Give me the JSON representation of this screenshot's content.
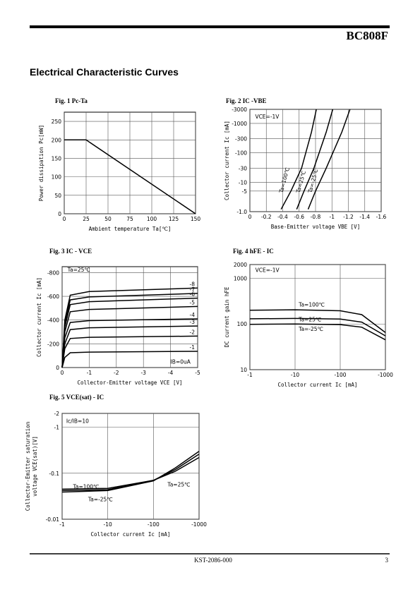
{
  "header": {
    "part": "BC808F"
  },
  "title": "Electrical Characteristic Curves",
  "footer": {
    "doc": "KST-2086-000",
    "page": "3"
  },
  "chart_data": [
    {
      "type": "line",
      "title": "Fig. 1 Pc-Ta",
      "xlabel": "Ambient temperature  Ta[℃]",
      "ylabel": "Power dissipation  Pc[mW]",
      "xlim": [
        0,
        150
      ],
      "xticks": [
        0,
        25,
        50,
        75,
        100,
        125,
        150
      ],
      "ylim": [
        0,
        275
      ],
      "yticks": [
        0,
        50,
        100,
        150,
        200,
        250
      ],
      "grid": true,
      "series": [
        {
          "name": "Pc",
          "color": "#000000",
          "x": [
            0,
            25,
            150
          ],
          "values": [
            200,
            200,
            0
          ]
        }
      ],
      "annotations": []
    },
    {
      "type": "line",
      "title": "Fig. 2 IC -VBE",
      "xlabel": "Base-Emitter voltage  VBE [V]",
      "ylabel": "Collector current  Ic [mA]",
      "xlim": [
        0,
        -1.6
      ],
      "xticks": [
        0,
        -0.2,
        -0.4,
        -0.6,
        -0.8,
        -1,
        -1.2,
        -1.4,
        -1.6
      ],
      "log_y": true,
      "ylim": [
        -1,
        -3000
      ],
      "yticks": [
        -3000,
        -1000,
        -300,
        -100,
        -30,
        -10,
        -5,
        {
          "value": -1,
          "label": "-1.0"
        }
      ],
      "grid": true,
      "series": [
        {
          "name": "Ta=100℃",
          "color": "#000000",
          "x": [
            -0.38,
            -0.5,
            -0.63,
            -0.75,
            -0.81
          ],
          "values": [
            -1.2,
            -5,
            -30,
            -500,
            -3000
          ]
        },
        {
          "name": "Ta=25℃",
          "color": "#000000",
          "x": [
            -0.57,
            -0.66,
            -0.78,
            -0.93,
            -1.01
          ],
          "values": [
            -1.2,
            -5,
            -30,
            -500,
            -3000
          ]
        },
        {
          "name": "Ta=-25℃",
          "color": "#000000",
          "x": [
            -0.71,
            -0.8,
            -0.93,
            -1.12,
            -1.22
          ],
          "values": [
            -1.2,
            -5,
            -30,
            -500,
            -3000
          ]
        }
      ],
      "annotations": [
        "VCE=-1V"
      ]
    },
    {
      "type": "line",
      "title": "Fig. 3 IC - VCE",
      "xlabel": "Collector-Emitter voltage  VCE [V]",
      "ylabel": "Collector current  Ic [mA]",
      "xlim": [
        0,
        -5
      ],
      "xticks": [
        0,
        -1,
        -2,
        -3,
        -4,
        -5
      ],
      "ylim": [
        0,
        -850
      ],
      "yticks": [
        0,
        -200,
        -400,
        -600,
        -800
      ],
      "grid": true,
      "series": [
        {
          "name": "-8",
          "color": "#000000",
          "x": [
            0,
            -0.1,
            -0.3,
            -1,
            -5
          ],
          "values": [
            0,
            -400,
            -610,
            -640,
            -670
          ]
        },
        {
          "name": "-7",
          "color": "#000000",
          "x": [
            0,
            -0.1,
            -0.3,
            -1,
            -5
          ],
          "values": [
            0,
            -370,
            -570,
            -595,
            -625
          ]
        },
        {
          "name": "-6",
          "color": "#000000",
          "x": [
            0,
            -0.1,
            -0.3,
            -1,
            -5
          ],
          "values": [
            0,
            -340,
            -530,
            -555,
            -585
          ]
        },
        {
          "name": "-5",
          "color": "#000000",
          "x": [
            0,
            -0.1,
            -0.3,
            -1,
            -5
          ],
          "values": [
            0,
            -300,
            -470,
            -490,
            -515
          ]
        },
        {
          "name": "-4",
          "color": "#000000",
          "x": [
            0,
            -0.1,
            -0.3,
            -1,
            -5
          ],
          "values": [
            0,
            -250,
            -380,
            -395,
            -410
          ]
        },
        {
          "name": "-3",
          "color": "#000000",
          "x": [
            0,
            -0.1,
            -0.3,
            -1,
            -5
          ],
          "values": [
            0,
            -200,
            -320,
            -335,
            -350
          ]
        },
        {
          "name": "-2",
          "color": "#000000",
          "x": [
            0,
            -0.1,
            -0.3,
            -1,
            -5
          ],
          "values": [
            0,
            -160,
            -245,
            -255,
            -265
          ]
        },
        {
          "name": "-1",
          "color": "#000000",
          "x": [
            0,
            -0.1,
            -0.3,
            -1,
            -5
          ],
          "values": [
            0,
            -85,
            -125,
            -130,
            -137
          ]
        }
      ],
      "annotations": [
        "Ta=25℃",
        "IB=0uA"
      ]
    },
    {
      "type": "line",
      "title": "Fig. 4 hFE - IC",
      "xlabel": "Collector current  Ic [mA]",
      "ylabel": "DC current gain  hFE",
      "log_x": true,
      "log_y": true,
      "xlim": [
        -1,
        -1000
      ],
      "xticks": [
        -1,
        -10,
        -100,
        -1000
      ],
      "ylim": [
        10,
        2000
      ],
      "yticks": [
        10,
        100,
        1000,
        2000
      ],
      "grid": true,
      "series": [
        {
          "name": "Ta=100℃",
          "color": "#000000",
          "x": [
            -1,
            -10,
            -100,
            -300,
            -1000
          ],
          "values": [
            200,
            205,
            195,
            160,
            65
          ]
        },
        {
          "name": "Ta=25℃",
          "color": "#000000",
          "x": [
            -1,
            -10,
            -100,
            -300,
            -1000
          ],
          "values": [
            130,
            132,
            128,
            110,
            55
          ]
        },
        {
          "name": "Ta=-25℃",
          "color": "#000000",
          "x": [
            -1,
            -10,
            -100,
            -300,
            -1000
          ],
          "values": [
            98,
            100,
            97,
            85,
            45
          ]
        }
      ],
      "annotations": [
        "VCE=-1V"
      ]
    },
    {
      "type": "line",
      "title": "Fig. 5 VCE(sat) - IC",
      "xlabel": "Collector current  Ic [mA]",
      "ylabel": [
        "Collector-Emitter saturation",
        "voltage  VCE(sat)[V]"
      ],
      "log_x": true,
      "log_y": true,
      "xlim": [
        -1,
        -1000
      ],
      "xticks": [
        -1,
        -10,
        -100,
        -1000
      ],
      "ylim": [
        -0.01,
        -2
      ],
      "yticks": [
        -2,
        -1,
        -0.1,
        -0.01
      ],
      "grid": true,
      "series": [
        {
          "name": "Ta=100℃",
          "color": "#000000",
          "x": [
            -1,
            -10,
            -100,
            -300,
            -1000
          ],
          "values": [
            -0.045,
            -0.047,
            -0.07,
            -0.11,
            -0.22
          ]
        },
        {
          "name": "Ta=25℃",
          "color": "#000000",
          "x": [
            -1,
            -10,
            -100,
            -300,
            -1000
          ],
          "values": [
            -0.042,
            -0.044,
            -0.07,
            -0.12,
            -0.26
          ]
        },
        {
          "name": "Ta=-25℃",
          "color": "#000000",
          "x": [
            -1,
            -10,
            -100,
            -300,
            -1000
          ],
          "values": [
            -0.039,
            -0.042,
            -0.068,
            -0.13,
            -0.3
          ]
        }
      ],
      "annotations": [
        "Ic/IB=10"
      ]
    }
  ]
}
